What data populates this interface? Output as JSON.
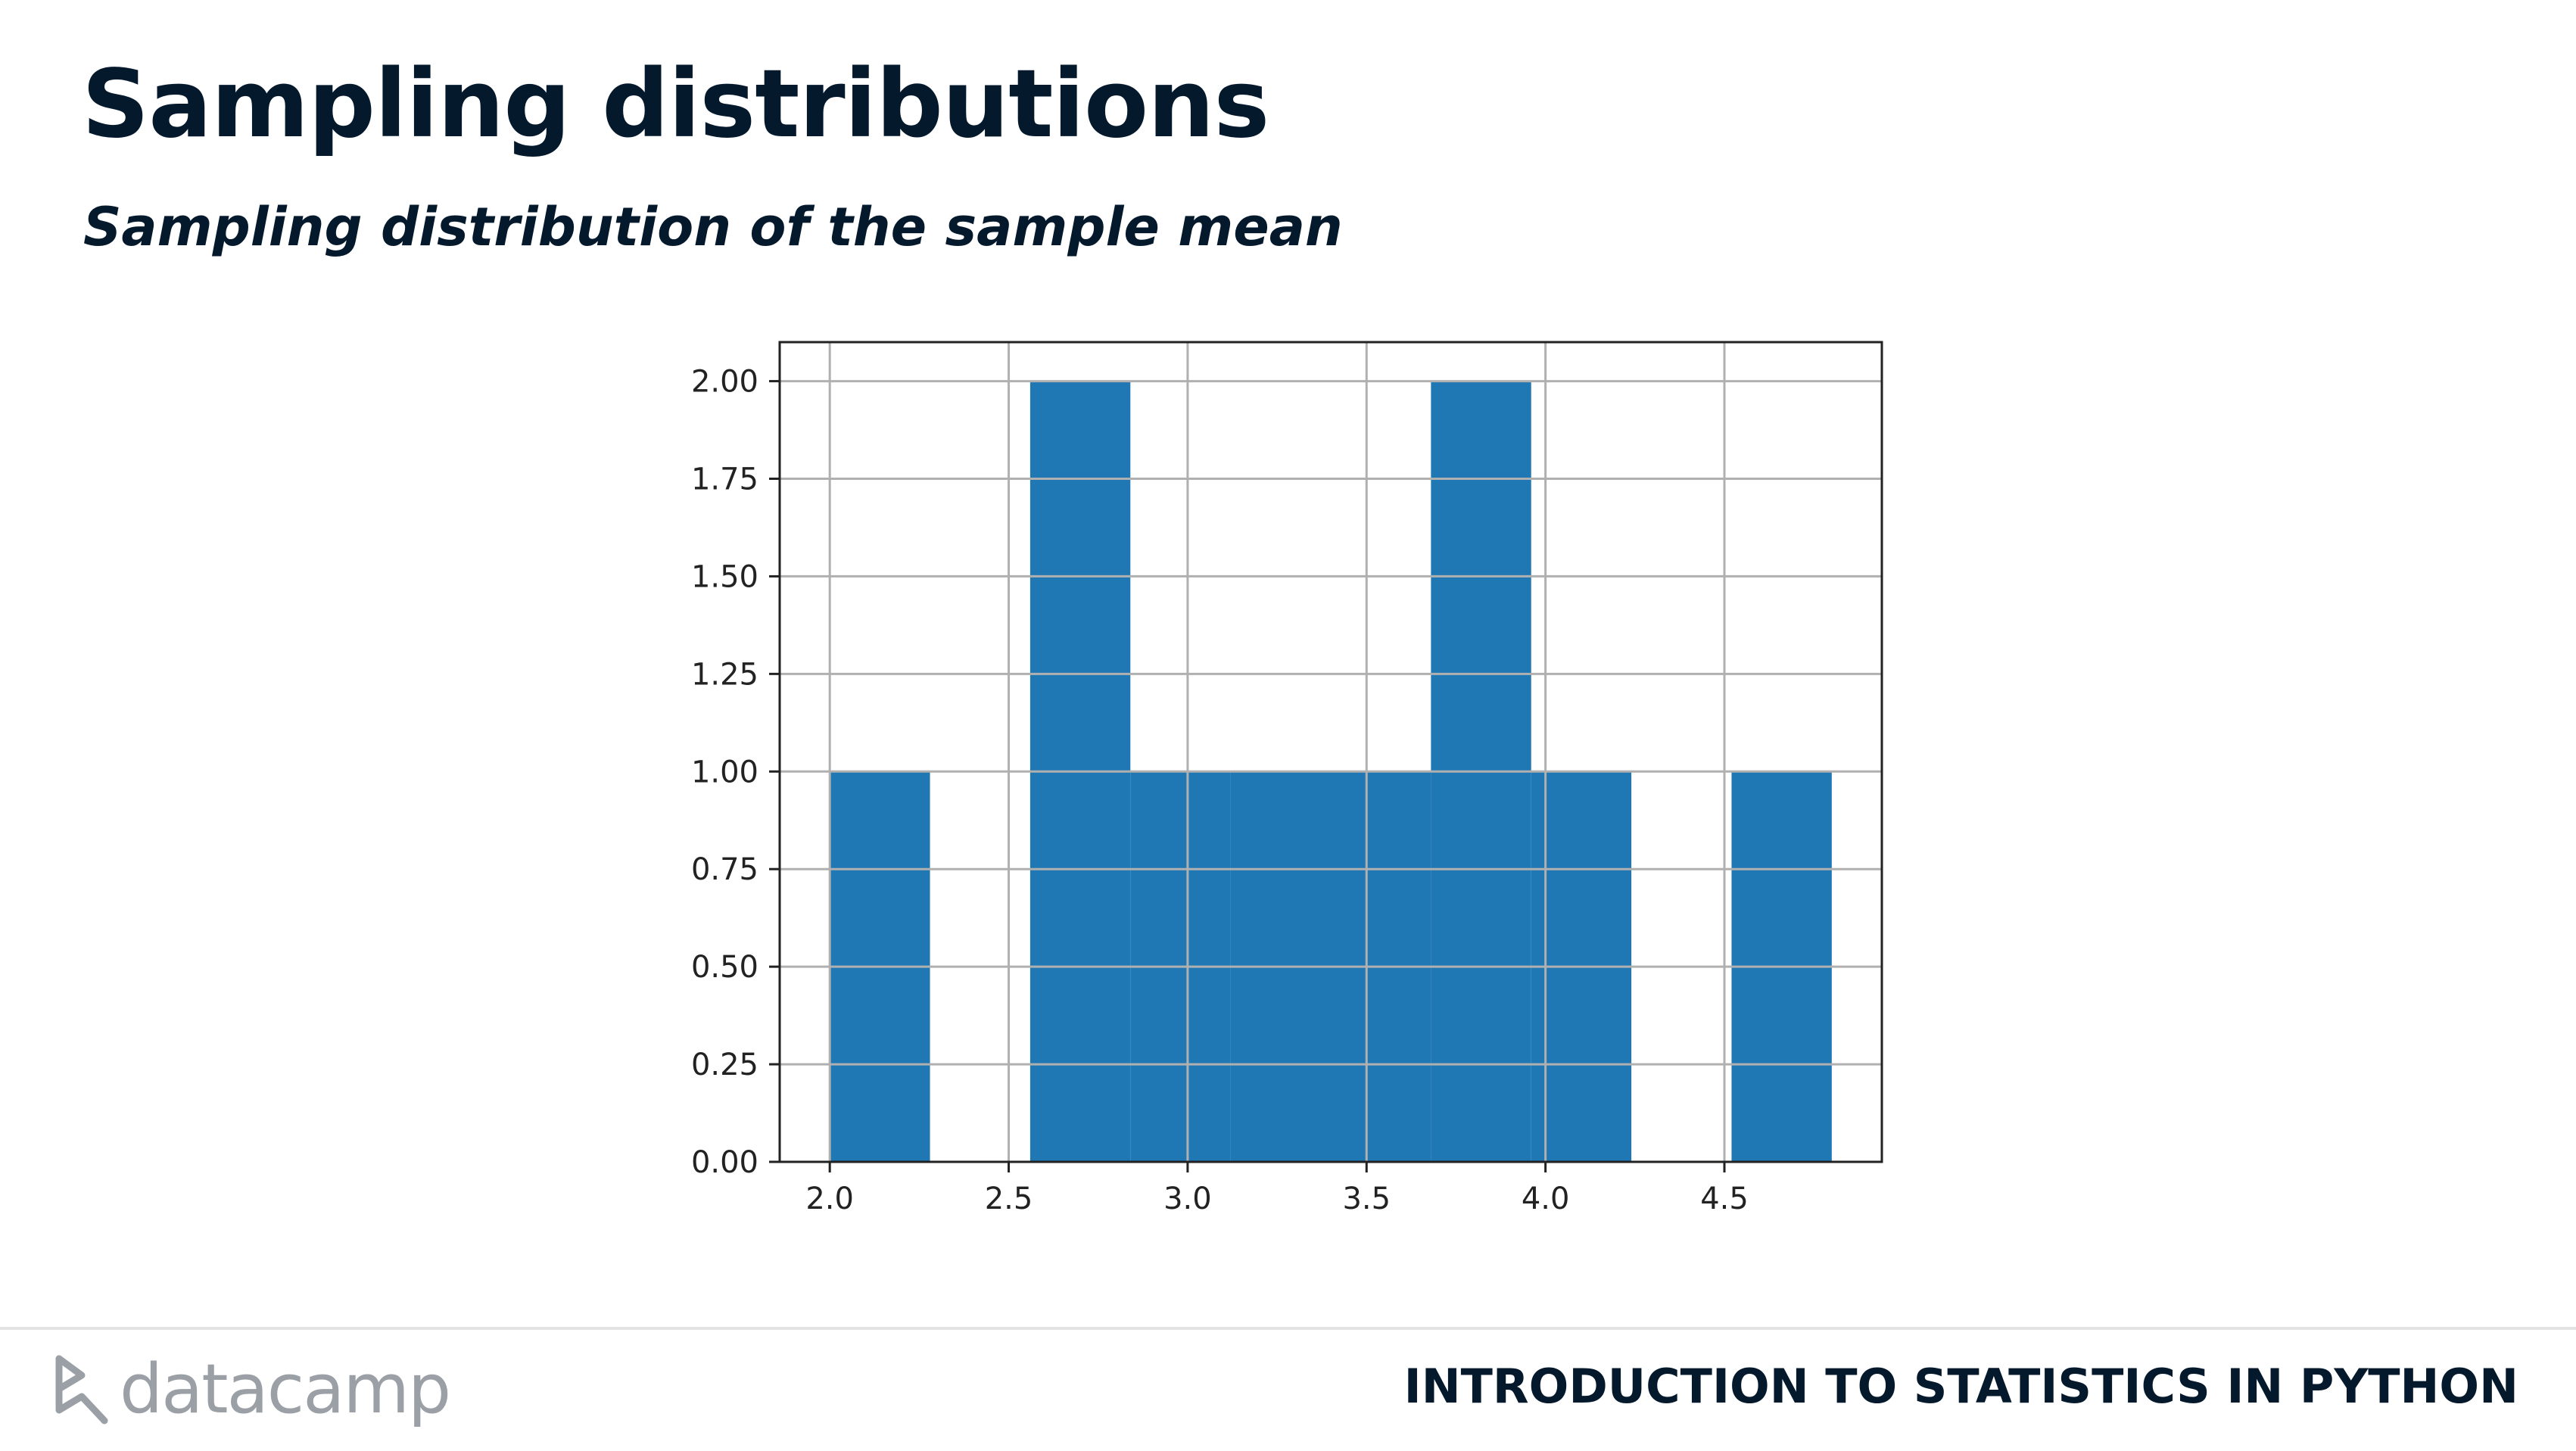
{
  "slide": {
    "title": "Sampling distributions",
    "subtitle": "Sampling distribution of the sample mean"
  },
  "footer": {
    "brand": "datacamp",
    "course": "INTRODUCTION TO STATISTICS IN PYTHON",
    "logo_icon": "datacamp-logo-icon"
  },
  "colors": {
    "bar": "#1f77b4",
    "grid": "#b0b0b0",
    "text": "#05192d"
  },
  "chart_data": {
    "type": "bar",
    "title": "",
    "xlabel": "",
    "ylabel": "",
    "grid": true,
    "xlim": [
      1.86,
      4.94
    ],
    "ylim": [
      0,
      2.1
    ],
    "xticks": [
      "2.0",
      "2.5",
      "3.0",
      "3.5",
      "4.0",
      "4.5"
    ],
    "xtick_values": [
      2.0,
      2.5,
      3.0,
      3.5,
      4.0,
      4.5
    ],
    "yticks": [
      "0.00",
      "0.25",
      "0.50",
      "0.75",
      "1.00",
      "1.25",
      "1.50",
      "1.75",
      "2.00"
    ],
    "ytick_values": [
      0,
      0.25,
      0.5,
      0.75,
      1.0,
      1.25,
      1.5,
      1.75,
      2.0
    ],
    "bin_edges": [
      2.0,
      2.28,
      2.56,
      2.84,
      3.12,
      3.4,
      3.68,
      3.96,
      4.24,
      4.52,
      4.8
    ],
    "values": [
      1,
      0,
      2,
      1,
      1,
      1,
      2,
      1,
      0,
      1
    ]
  }
}
